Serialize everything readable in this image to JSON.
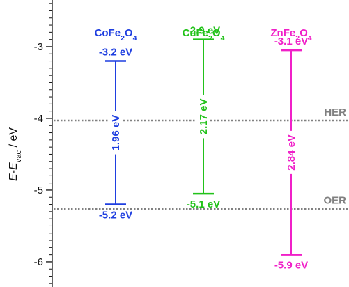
{
  "chart_data": {
    "type": "band-diagram",
    "ylabel_parts": [
      "E",
      "-",
      "E",
      "vac",
      " / eV"
    ],
    "ylim": [
      -6.35,
      -2.35
    ],
    "yticks": [
      -3,
      -4,
      -5,
      -6
    ],
    "ytick_labels": [
      "-3",
      "-4",
      "-5",
      "-6"
    ],
    "materials": [
      {
        "name_parts": [
          "CoFe",
          "2",
          "O",
          "4"
        ],
        "top": -3.2,
        "bottom": -5.2,
        "top_label": "-3.2 eV",
        "bottom_label": "-5.2 eV",
        "gap_label": "1.96 eV",
        "color": "#1f3fe0"
      },
      {
        "name_parts": [
          "CuFe",
          "2",
          "O",
          "4"
        ],
        "top": -2.9,
        "bottom": -5.05,
        "top_label": "-2.9 eV",
        "bottom_label": "-5.1 eV",
        "gap_label": "2.17 eV",
        "color": "#22c21a"
      },
      {
        "name_parts": [
          "ZnFe",
          "2",
          "O",
          "4"
        ],
        "top": -3.05,
        "bottom": -5.9,
        "top_label": "-3.1 eV",
        "bottom_label": "-5.9 eV",
        "gap_label": "2.84 eV",
        "color": "#f020c8"
      }
    ],
    "reference_lines": [
      {
        "label": "HER",
        "value": -4.03,
        "color": "#808080"
      },
      {
        "label": "OER",
        "value": -5.26,
        "color": "#808080"
      }
    ]
  }
}
